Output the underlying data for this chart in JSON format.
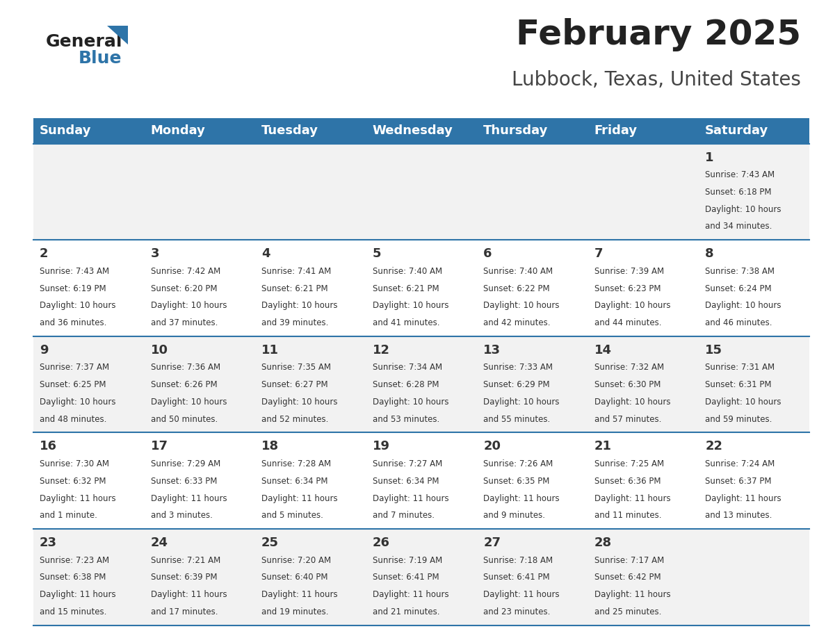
{
  "title": "February 2025",
  "subtitle": "Lubbock, Texas, United States",
  "days_of_week": [
    "Sunday",
    "Monday",
    "Tuesday",
    "Wednesday",
    "Thursday",
    "Friday",
    "Saturday"
  ],
  "header_bg": "#2E74A8",
  "header_text": "#FFFFFF",
  "bg_color": "#FFFFFF",
  "cell_bg_odd": "#F2F2F2",
  "cell_bg_even": "#FFFFFF",
  "title_color": "#222222",
  "subtitle_color": "#444444",
  "day_num_color": "#333333",
  "info_color": "#333333",
  "grid_line_color": "#2E74A8",
  "logo_general_color": "#222222",
  "logo_blue_color": "#2E74A8",
  "days": [
    {
      "date": 1,
      "row": 0,
      "col": 6,
      "sunrise": "7:43 AM",
      "sunset": "6:18 PM",
      "daylight": "10 hours and 34 minutes."
    },
    {
      "date": 2,
      "row": 1,
      "col": 0,
      "sunrise": "7:43 AM",
      "sunset": "6:19 PM",
      "daylight": "10 hours and 36 minutes."
    },
    {
      "date": 3,
      "row": 1,
      "col": 1,
      "sunrise": "7:42 AM",
      "sunset": "6:20 PM",
      "daylight": "10 hours and 37 minutes."
    },
    {
      "date": 4,
      "row": 1,
      "col": 2,
      "sunrise": "7:41 AM",
      "sunset": "6:21 PM",
      "daylight": "10 hours and 39 minutes."
    },
    {
      "date": 5,
      "row": 1,
      "col": 3,
      "sunrise": "7:40 AM",
      "sunset": "6:21 PM",
      "daylight": "10 hours and 41 minutes."
    },
    {
      "date": 6,
      "row": 1,
      "col": 4,
      "sunrise": "7:40 AM",
      "sunset": "6:22 PM",
      "daylight": "10 hours and 42 minutes."
    },
    {
      "date": 7,
      "row": 1,
      "col": 5,
      "sunrise": "7:39 AM",
      "sunset": "6:23 PM",
      "daylight": "10 hours and 44 minutes."
    },
    {
      "date": 8,
      "row": 1,
      "col": 6,
      "sunrise": "7:38 AM",
      "sunset": "6:24 PM",
      "daylight": "10 hours and 46 minutes."
    },
    {
      "date": 9,
      "row": 2,
      "col": 0,
      "sunrise": "7:37 AM",
      "sunset": "6:25 PM",
      "daylight": "10 hours and 48 minutes."
    },
    {
      "date": 10,
      "row": 2,
      "col": 1,
      "sunrise": "7:36 AM",
      "sunset": "6:26 PM",
      "daylight": "10 hours and 50 minutes."
    },
    {
      "date": 11,
      "row": 2,
      "col": 2,
      "sunrise": "7:35 AM",
      "sunset": "6:27 PM",
      "daylight": "10 hours and 52 minutes."
    },
    {
      "date": 12,
      "row": 2,
      "col": 3,
      "sunrise": "7:34 AM",
      "sunset": "6:28 PM",
      "daylight": "10 hours and 53 minutes."
    },
    {
      "date": 13,
      "row": 2,
      "col": 4,
      "sunrise": "7:33 AM",
      "sunset": "6:29 PM",
      "daylight": "10 hours and 55 minutes."
    },
    {
      "date": 14,
      "row": 2,
      "col": 5,
      "sunrise": "7:32 AM",
      "sunset": "6:30 PM",
      "daylight": "10 hours and 57 minutes."
    },
    {
      "date": 15,
      "row": 2,
      "col": 6,
      "sunrise": "7:31 AM",
      "sunset": "6:31 PM",
      "daylight": "10 hours and 59 minutes."
    },
    {
      "date": 16,
      "row": 3,
      "col": 0,
      "sunrise": "7:30 AM",
      "sunset": "6:32 PM",
      "daylight": "11 hours and 1 minute."
    },
    {
      "date": 17,
      "row": 3,
      "col": 1,
      "sunrise": "7:29 AM",
      "sunset": "6:33 PM",
      "daylight": "11 hours and 3 minutes."
    },
    {
      "date": 18,
      "row": 3,
      "col": 2,
      "sunrise": "7:28 AM",
      "sunset": "6:34 PM",
      "daylight": "11 hours and 5 minutes."
    },
    {
      "date": 19,
      "row": 3,
      "col": 3,
      "sunrise": "7:27 AM",
      "sunset": "6:34 PM",
      "daylight": "11 hours and 7 minutes."
    },
    {
      "date": 20,
      "row": 3,
      "col": 4,
      "sunrise": "7:26 AM",
      "sunset": "6:35 PM",
      "daylight": "11 hours and 9 minutes."
    },
    {
      "date": 21,
      "row": 3,
      "col": 5,
      "sunrise": "7:25 AM",
      "sunset": "6:36 PM",
      "daylight": "11 hours and 11 minutes."
    },
    {
      "date": 22,
      "row": 3,
      "col": 6,
      "sunrise": "7:24 AM",
      "sunset": "6:37 PM",
      "daylight": "11 hours and 13 minutes."
    },
    {
      "date": 23,
      "row": 4,
      "col": 0,
      "sunrise": "7:23 AM",
      "sunset": "6:38 PM",
      "daylight": "11 hours and 15 minutes."
    },
    {
      "date": 24,
      "row": 4,
      "col": 1,
      "sunrise": "7:21 AM",
      "sunset": "6:39 PM",
      "daylight": "11 hours and 17 minutes."
    },
    {
      "date": 25,
      "row": 4,
      "col": 2,
      "sunrise": "7:20 AM",
      "sunset": "6:40 PM",
      "daylight": "11 hours and 19 minutes."
    },
    {
      "date": 26,
      "row": 4,
      "col": 3,
      "sunrise": "7:19 AM",
      "sunset": "6:41 PM",
      "daylight": "11 hours and 21 minutes."
    },
    {
      "date": 27,
      "row": 4,
      "col": 4,
      "sunrise": "7:18 AM",
      "sunset": "6:41 PM",
      "daylight": "11 hours and 23 minutes."
    },
    {
      "date": 28,
      "row": 4,
      "col": 5,
      "sunrise": "7:17 AM",
      "sunset": "6:42 PM",
      "daylight": "11 hours and 25 minutes."
    }
  ]
}
